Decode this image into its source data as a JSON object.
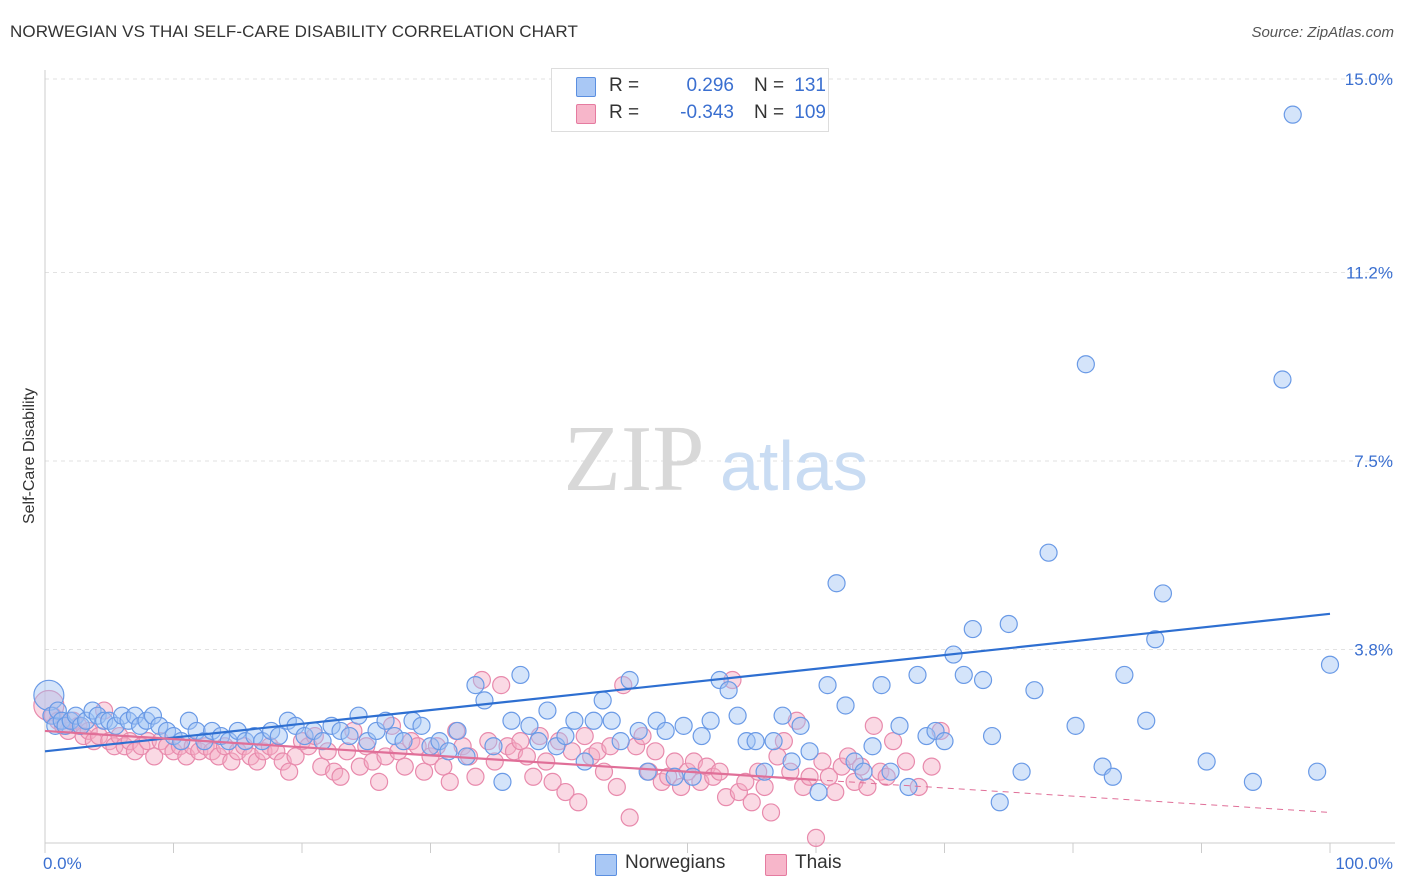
{
  "title": "NORWEGIAN VS THAI SELF-CARE DISABILITY CORRELATION CHART",
  "source": "Source: ZipAtlas.com",
  "watermark": {
    "zip": "ZIP",
    "atlas": "atlas"
  },
  "legend": {
    "r_label": "R =",
    "n_label": "N =",
    "rows": [
      {
        "r": "0.296",
        "n": "131",
        "color": "#a9c8f5",
        "border": "#5b8fe0"
      },
      {
        "r": "-0.343",
        "n": "109",
        "color": "#f7b6ca",
        "border": "#e57ba0"
      }
    ]
  },
  "bottom_legend": [
    "Norwegians",
    "Thais"
  ],
  "chart_data": {
    "type": "scatter",
    "title": "NORWEGIAN VS THAI SELF-CARE DISABILITY CORRELATION CHART",
    "xlabel": "",
    "ylabel": "Self-Care Disability",
    "xlim": [
      0,
      100
    ],
    "ylim": [
      0,
      15
    ],
    "x_tick_labels": [
      "0.0%",
      "100.0%"
    ],
    "y_ticks": [
      3.8,
      7.5,
      11.2,
      15.0
    ],
    "y_tick_labels": [
      "3.8%",
      "7.5%",
      "11.2%",
      "15.0%"
    ],
    "grid": "horizontal dashed",
    "legend_position": "top-center",
    "series": [
      {
        "name": "Norwegians",
        "color": "#7aaaf0",
        "line_color": "#2e6fd1",
        "trend": {
          "x": [
            0,
            100
          ],
          "y": [
            1.8,
            4.5
          ],
          "dashed_from": null
        },
        "points": [
          [
            0.3,
            2.9
          ],
          [
            0.5,
            2.5
          ],
          [
            0.8,
            2.3
          ],
          [
            1.0,
            2.6
          ],
          [
            1.3,
            2.4
          ],
          [
            1.6,
            2.3
          ],
          [
            2.0,
            2.4
          ],
          [
            2.4,
            2.5
          ],
          [
            2.8,
            2.3
          ],
          [
            3.2,
            2.4
          ],
          [
            3.7,
            2.6
          ],
          [
            4.1,
            2.5
          ],
          [
            4.6,
            2.4
          ],
          [
            5.0,
            2.4
          ],
          [
            5.5,
            2.3
          ],
          [
            6.0,
            2.5
          ],
          [
            6.5,
            2.4
          ],
          [
            7.0,
            2.5
          ],
          [
            7.4,
            2.3
          ],
          [
            7.9,
            2.4
          ],
          [
            8.4,
            2.5
          ],
          [
            8.9,
            2.3
          ],
          [
            9.5,
            2.2
          ],
          [
            10.0,
            2.1
          ],
          [
            10.6,
            2.0
          ],
          [
            11.2,
            2.4
          ],
          [
            11.8,
            2.2
          ],
          [
            12.4,
            2.0
          ],
          [
            13.0,
            2.2
          ],
          [
            13.7,
            2.1
          ],
          [
            14.3,
            2.0
          ],
          [
            15.0,
            2.2
          ],
          [
            15.6,
            2.0
          ],
          [
            16.3,
            2.1
          ],
          [
            16.9,
            2.0
          ],
          [
            17.6,
            2.2
          ],
          [
            18.2,
            2.1
          ],
          [
            18.9,
            2.4
          ],
          [
            19.5,
            2.3
          ],
          [
            20.2,
            2.1
          ],
          [
            20.9,
            2.2
          ],
          [
            21.6,
            2.0
          ],
          [
            22.3,
            2.3
          ],
          [
            23.0,
            2.2
          ],
          [
            23.7,
            2.1
          ],
          [
            24.4,
            2.5
          ],
          [
            25.1,
            2.0
          ],
          [
            25.8,
            2.2
          ],
          [
            26.5,
            2.4
          ],
          [
            27.2,
            2.1
          ],
          [
            27.9,
            2.0
          ],
          [
            28.6,
            2.4
          ],
          [
            29.3,
            2.3
          ],
          [
            30.0,
            1.9
          ],
          [
            30.7,
            2.0
          ],
          [
            31.4,
            1.8
          ],
          [
            32.1,
            2.2
          ],
          [
            32.8,
            1.7
          ],
          [
            33.5,
            3.1
          ],
          [
            34.2,
            2.8
          ],
          [
            34.9,
            1.9
          ],
          [
            35.6,
            1.2
          ],
          [
            36.3,
            2.4
          ],
          [
            37.0,
            3.3
          ],
          [
            37.7,
            2.3
          ],
          [
            38.4,
            2.0
          ],
          [
            39.1,
            2.6
          ],
          [
            39.8,
            1.9
          ],
          [
            40.5,
            2.1
          ],
          [
            41.2,
            2.4
          ],
          [
            42.0,
            1.6
          ],
          [
            42.7,
            2.4
          ],
          [
            43.4,
            2.8
          ],
          [
            44.1,
            2.4
          ],
          [
            44.8,
            2.0
          ],
          [
            45.5,
            3.2
          ],
          [
            46.2,
            2.2
          ],
          [
            46.9,
            1.4
          ],
          [
            47.6,
            2.4
          ],
          [
            48.3,
            2.2
          ],
          [
            49.0,
            1.3
          ],
          [
            49.7,
            2.3
          ],
          [
            50.4,
            1.3
          ],
          [
            51.1,
            2.1
          ],
          [
            51.8,
            2.4
          ],
          [
            52.5,
            3.2
          ],
          [
            53.2,
            3.0
          ],
          [
            53.9,
            2.5
          ],
          [
            54.6,
            2.0
          ],
          [
            55.3,
            2.0
          ],
          [
            56.0,
            1.4
          ],
          [
            56.7,
            2.0
          ],
          [
            57.4,
            2.5
          ],
          [
            58.1,
            1.6
          ],
          [
            58.8,
            2.3
          ],
          [
            59.5,
            1.8
          ],
          [
            60.2,
            1.0
          ],
          [
            60.9,
            3.1
          ],
          [
            61.6,
            5.1
          ],
          [
            62.3,
            2.7
          ],
          [
            63.0,
            1.6
          ],
          [
            63.7,
            1.4
          ],
          [
            64.4,
            1.9
          ],
          [
            65.1,
            3.1
          ],
          [
            65.8,
            1.4
          ],
          [
            66.5,
            2.3
          ],
          [
            67.2,
            1.1
          ],
          [
            67.9,
            3.3
          ],
          [
            68.6,
            2.1
          ],
          [
            69.3,
            2.2
          ],
          [
            70.0,
            2.0
          ],
          [
            70.7,
            3.7
          ],
          [
            71.5,
            3.3
          ],
          [
            72.2,
            4.2
          ],
          [
            73.0,
            3.2
          ],
          [
            73.7,
            2.1
          ],
          [
            74.3,
            0.8
          ],
          [
            75.0,
            4.3
          ],
          [
            76.0,
            1.4
          ],
          [
            77.0,
            3.0
          ],
          [
            78.1,
            5.7
          ],
          [
            80.2,
            2.3
          ],
          [
            81.0,
            9.4
          ],
          [
            82.3,
            1.5
          ],
          [
            83.1,
            1.3
          ],
          [
            84.0,
            3.3
          ],
          [
            85.7,
            2.4
          ],
          [
            86.4,
            4.0
          ],
          [
            87.0,
            4.9
          ],
          [
            90.4,
            1.6
          ],
          [
            94.0,
            1.2
          ],
          [
            96.3,
            9.1
          ],
          [
            97.1,
            14.3
          ],
          [
            99.0,
            1.4
          ],
          [
            100.0,
            3.5
          ]
        ]
      },
      {
        "name": "Thais",
        "color": "#f5a9c1",
        "line_color": "#e06f98",
        "trend": {
          "x": [
            0,
            100
          ],
          "y": [
            2.2,
            0.6
          ],
          "dashed_from": 60
        },
        "points": [
          [
            0.3,
            2.7
          ],
          [
            0.6,
            2.5
          ],
          [
            1.0,
            2.4
          ],
          [
            1.4,
            2.3
          ],
          [
            1.8,
            2.2
          ],
          [
            2.2,
            2.4
          ],
          [
            2.6,
            2.3
          ],
          [
            3.0,
            2.1
          ],
          [
            3.4,
            2.2
          ],
          [
            3.8,
            2.0
          ],
          [
            4.2,
            2.1
          ],
          [
            4.6,
            2.6
          ],
          [
            5.0,
            2.0
          ],
          [
            5.4,
            1.9
          ],
          [
            5.8,
            2.1
          ],
          [
            6.2,
            1.9
          ],
          [
            6.6,
            2.0
          ],
          [
            7.0,
            1.8
          ],
          [
            7.5,
            1.9
          ],
          [
            8.0,
            2.0
          ],
          [
            8.5,
            1.7
          ],
          [
            9.0,
            2.0
          ],
          [
            9.5,
            1.9
          ],
          [
            10.0,
            1.8
          ],
          [
            10.5,
            1.9
          ],
          [
            11.0,
            1.7
          ],
          [
            11.5,
            1.9
          ],
          [
            12.0,
            1.8
          ],
          [
            12.5,
            1.9
          ],
          [
            13.0,
            1.8
          ],
          [
            13.5,
            1.7
          ],
          [
            14.0,
            1.9
          ],
          [
            14.5,
            1.6
          ],
          [
            15.0,
            1.8
          ],
          [
            15.5,
            1.9
          ],
          [
            16.0,
            1.7
          ],
          [
            16.5,
            1.6
          ],
          [
            17.0,
            1.8
          ],
          [
            17.5,
            1.9
          ],
          [
            18.0,
            1.8
          ],
          [
            18.5,
            1.6
          ],
          [
            19.0,
            1.4
          ],
          [
            19.5,
            1.7
          ],
          [
            20.0,
            2.0
          ],
          [
            20.5,
            1.9
          ],
          [
            21.0,
            2.1
          ],
          [
            21.5,
            1.5
          ],
          [
            22.0,
            1.8
          ],
          [
            22.5,
            1.4
          ],
          [
            23.0,
            1.3
          ],
          [
            23.5,
            1.8
          ],
          [
            24.0,
            2.2
          ],
          [
            24.5,
            1.5
          ],
          [
            25.0,
            1.9
          ],
          [
            25.5,
            1.6
          ],
          [
            26.0,
            1.2
          ],
          [
            26.5,
            1.7
          ],
          [
            27.0,
            2.3
          ],
          [
            27.5,
            1.8
          ],
          [
            28.0,
            1.5
          ],
          [
            28.5,
            2.0
          ],
          [
            29.0,
            1.9
          ],
          [
            29.5,
            1.4
          ],
          [
            30.0,
            1.7
          ],
          [
            30.5,
            1.9
          ],
          [
            31.0,
            1.5
          ],
          [
            31.5,
            1.2
          ],
          [
            32.0,
            2.2
          ],
          [
            32.5,
            1.9
          ],
          [
            33.0,
            1.7
          ],
          [
            33.5,
            1.3
          ],
          [
            34.0,
            3.2
          ],
          [
            34.5,
            2.0
          ],
          [
            35.0,
            1.6
          ],
          [
            35.5,
            3.1
          ],
          [
            36.0,
            1.9
          ],
          [
            36.5,
            1.8
          ],
          [
            37.0,
            2.0
          ],
          [
            37.5,
            1.7
          ],
          [
            38.0,
            1.3
          ],
          [
            38.5,
            2.1
          ],
          [
            39.0,
            1.6
          ],
          [
            39.5,
            1.2
          ],
          [
            40.0,
            2.0
          ],
          [
            40.5,
            1.0
          ],
          [
            41.0,
            1.8
          ],
          [
            41.5,
            0.8
          ],
          [
            42.0,
            2.1
          ],
          [
            42.5,
            1.7
          ],
          [
            43.0,
            1.8
          ],
          [
            43.5,
            1.4
          ],
          [
            44.0,
            1.9
          ],
          [
            44.5,
            1.1
          ],
          [
            45.0,
            3.1
          ],
          [
            45.5,
            0.5
          ],
          [
            46.0,
            1.9
          ],
          [
            46.5,
            2.1
          ],
          [
            47.0,
            1.4
          ],
          [
            47.5,
            1.8
          ],
          [
            48.0,
            1.2
          ],
          [
            48.5,
            1.3
          ],
          [
            49.0,
            1.6
          ],
          [
            49.5,
            1.1
          ],
          [
            50.0,
            1.4
          ],
          [
            50.5,
            1.6
          ],
          [
            51.0,
            1.2
          ],
          [
            51.5,
            1.5
          ],
          [
            52.0,
            1.3
          ],
          [
            52.5,
            1.4
          ],
          [
            53.0,
            0.9
          ],
          [
            53.5,
            3.2
          ],
          [
            54.0,
            1.0
          ],
          [
            54.5,
            1.2
          ],
          [
            55.0,
            0.8
          ],
          [
            55.5,
            1.4
          ],
          [
            56.0,
            1.1
          ],
          [
            56.5,
            0.6
          ],
          [
            57.0,
            1.7
          ],
          [
            57.5,
            2.0
          ],
          [
            58.0,
            1.4
          ],
          [
            58.5,
            2.4
          ],
          [
            59.0,
            1.1
          ],
          [
            59.5,
            1.3
          ],
          [
            60.0,
            0.1
          ],
          [
            60.5,
            1.6
          ],
          [
            61.0,
            1.3
          ],
          [
            61.5,
            1.0
          ],
          [
            62.0,
            1.5
          ],
          [
            62.5,
            1.7
          ],
          [
            63.0,
            1.2
          ],
          [
            63.5,
            1.5
          ],
          [
            64.0,
            1.1
          ],
          [
            64.5,
            2.3
          ],
          [
            65.0,
            1.4
          ],
          [
            65.5,
            1.3
          ],
          [
            66.0,
            2.0
          ],
          [
            67.0,
            1.6
          ],
          [
            68.0,
            1.1
          ],
          [
            69.0,
            1.5
          ],
          [
            69.7,
            2.2
          ]
        ]
      }
    ]
  }
}
